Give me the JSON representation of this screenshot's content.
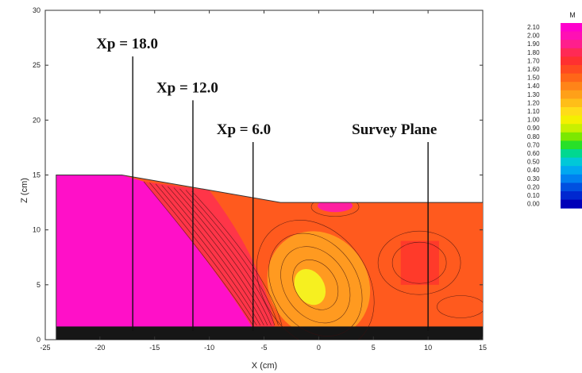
{
  "chart_data": {
    "type": "contour",
    "xlabel": "X (cm)",
    "ylabel": "Z (cm)",
    "xlim": [
      -25,
      15
    ],
    "ylim": [
      0,
      30
    ],
    "x_ticks": [
      "-25",
      "-20",
      "-15",
      "-10",
      "-5",
      "0",
      "5",
      "10",
      "15"
    ],
    "y_ticks": [
      "0",
      "5",
      "10",
      "15",
      "20",
      "25",
      "30"
    ],
    "bed_profile": [
      {
        "x": -24,
        "z": 15.0
      },
      {
        "x": -18,
        "z": 15.0
      },
      {
        "x": -3.5,
        "z": 12.5
      },
      {
        "x": 15,
        "z": 12.5
      }
    ],
    "annotations": [
      {
        "text": "Xp = 18.0",
        "line_x": -17,
        "line_z": [
          0.8,
          25.8
        ]
      },
      {
        "text": "Xp = 12.0",
        "line_x": -11.5,
        "line_z": [
          0.8,
          21.8
        ]
      },
      {
        "text": "Xp = 6.0",
        "line_x": -6,
        "line_z": [
          0.8,
          18.0
        ]
      },
      {
        "text": "Survey Plane",
        "line_x": 10,
        "line_z": [
          0.8,
          18.0
        ]
      }
    ],
    "colorbar": {
      "title": "M",
      "labels": [
        "2.10",
        "2.00",
        "1.90",
        "1.80",
        "1.70",
        "1.60",
        "1.50",
        "1.40",
        "1.30",
        "1.20",
        "1.10",
        "1.00",
        "0.90",
        "0.80",
        "0.70",
        "0.60",
        "0.50",
        "0.40",
        "0.30",
        "0.20",
        "0.10",
        "0.00"
      ],
      "colors": [
        "#ff00cc",
        "#ff10b4",
        "#ff1f8c",
        "#ff2a55",
        "#ff3030",
        "#ff4a20",
        "#ff6618",
        "#ff8418",
        "#ffa018",
        "#ffbe18",
        "#ffdc18",
        "#f4f000",
        "#c8f000",
        "#7ce800",
        "#28e028",
        "#00d890",
        "#00c8d8",
        "#00a8f0",
        "#0080f0",
        "#0050e0",
        "#0028d0",
        "#0000b8"
      ]
    }
  }
}
